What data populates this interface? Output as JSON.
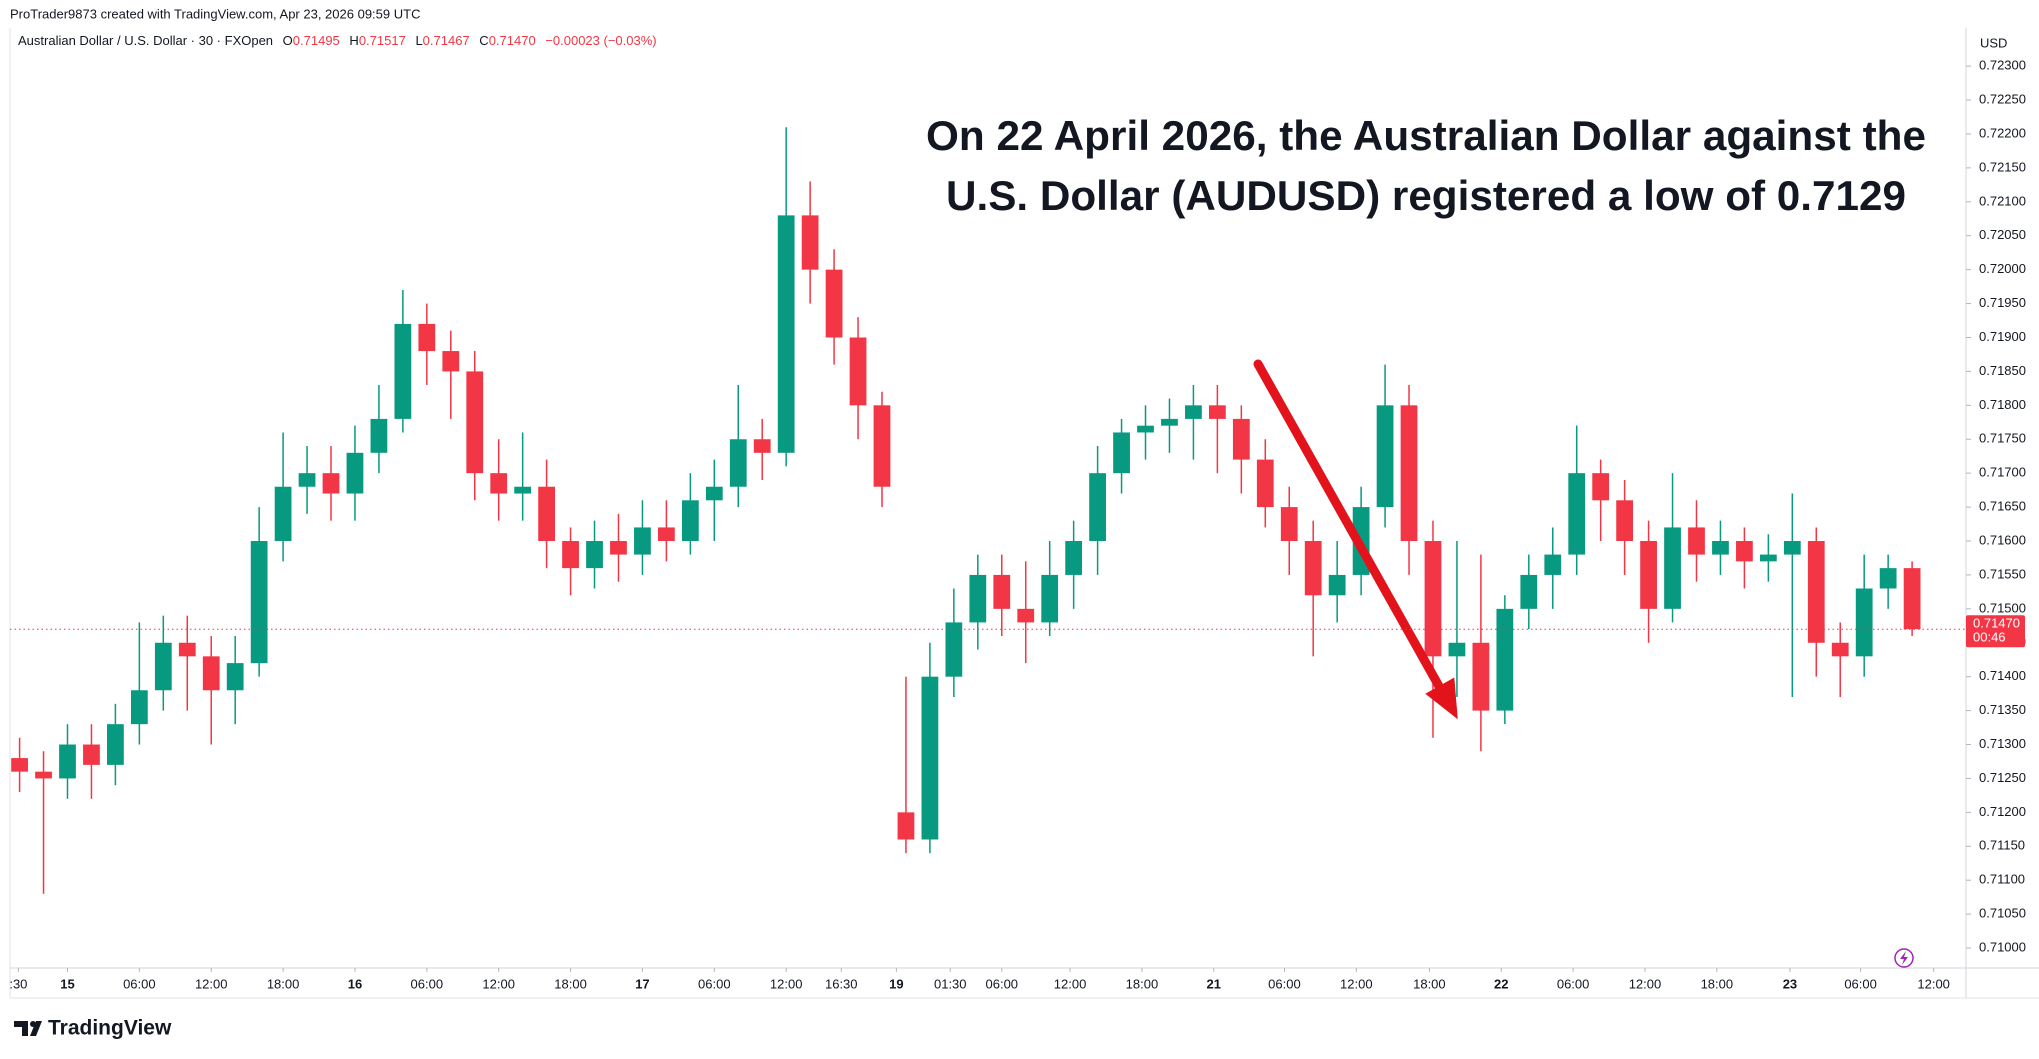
{
  "header": "ProTrader9873 created with TradingView.com, Apr 23, 2026 09:59 UTC",
  "chart_data": {
    "type": "candlestick",
    "symbol": "Australian Dollar / U.S. Dollar · 30 · FXOpen",
    "legend_values": [
      {
        "key": "O",
        "value": "0.71495"
      },
      {
        "key": "H",
        "value": "0.71517"
      },
      {
        "key": "L",
        "value": "0.71467"
      },
      {
        "key": "C",
        "value": "0.71470"
      }
    ],
    "change": "−0.00023 (−0.03%)",
    "currency": "USD",
    "annotation": [
      "On 22 April 2026, the Australian Dollar against the",
      "U.S. Dollar (AUDUSD) registered a low of 0.7129"
    ],
    "up_color": "#089981",
    "down_color": "#f23645",
    "x": [
      -4,
      -2,
      0,
      2,
      4,
      6,
      8,
      10,
      12,
      14,
      16,
      18,
      20,
      22,
      24,
      26,
      28,
      30,
      32,
      34,
      36,
      38,
      40,
      42,
      44,
      46,
      48,
      50,
      52,
      54,
      56,
      58,
      60,
      62,
      64,
      66,
      68,
      70,
      72,
      74,
      76,
      78,
      80,
      82,
      84,
      86,
      88,
      90,
      92,
      94,
      96,
      98,
      100,
      102,
      104,
      106,
      108,
      110,
      112,
      114,
      116,
      118,
      120,
      122,
      124,
      126,
      128,
      130,
      132,
      134,
      136,
      138,
      140,
      142,
      144,
      146,
      148,
      150,
      152,
      154
    ],
    "open": [
      0.7128,
      0.7126,
      0.7125,
      0.713,
      0.7127,
      0.7133,
      0.7138,
      0.7145,
      0.7143,
      0.7138,
      0.7142,
      0.716,
      0.7168,
      0.717,
      0.7167,
      0.7173,
      0.7178,
      0.7192,
      0.7188,
      0.7185,
      0.717,
      0.7167,
      0.7168,
      0.716,
      0.7156,
      0.716,
      0.7158,
      0.7162,
      0.716,
      0.7166,
      0.7168,
      0.7175,
      0.7173,
      0.7208,
      0.72,
      0.719,
      0.718,
      0.712,
      0.7116,
      0.714,
      0.7148,
      0.7155,
      0.715,
      0.7148,
      0.7155,
      0.716,
      0.717,
      0.7176,
      0.7177,
      0.7178,
      0.718,
      0.7178,
      0.7172,
      0.7165,
      0.716,
      0.7152,
      0.7155,
      0.7165,
      0.718,
      0.716,
      0.7143,
      0.7145,
      0.7135,
      0.715,
      0.7155,
      0.7158,
      0.717,
      0.7166,
      0.716,
      0.715,
      0.7162,
      0.7158,
      0.716,
      0.7157,
      0.7158,
      0.716,
      0.7145,
      0.7143,
      0.7153,
      0.7156
    ],
    "high": [
      0.7131,
      0.7129,
      0.7133,
      0.7133,
      0.7136,
      0.7148,
      0.7149,
      0.7149,
      0.7146,
      0.7146,
      0.7165,
      0.7176,
      0.7174,
      0.7174,
      0.7177,
      0.7183,
      0.7197,
      0.7195,
      0.7191,
      0.7188,
      0.7175,
      0.7176,
      0.7172,
      0.7162,
      0.7163,
      0.7164,
      0.7166,
      0.7166,
      0.717,
      0.7172,
      0.7183,
      0.7178,
      0.7221,
      0.7213,
      0.7203,
      0.7193,
      0.7182,
      0.714,
      0.7145,
      0.7153,
      0.7158,
      0.7158,
      0.7157,
      0.716,
      0.7163,
      0.7174,
      0.7178,
      0.718,
      0.7181,
      0.7183,
      0.7183,
      0.718,
      0.7175,
      0.7168,
      0.7163,
      0.716,
      0.7168,
      0.7186,
      0.7183,
      0.7163,
      0.716,
      0.7158,
      0.7152,
      0.7158,
      0.7162,
      0.7177,
      0.7172,
      0.7169,
      0.7163,
      0.717,
      0.7166,
      0.7163,
      0.7162,
      0.7161,
      0.7167,
      0.7162,
      0.7148,
      0.7158,
      0.7158,
      0.7157
    ],
    "low": [
      0.7123,
      0.7108,
      0.7122,
      0.7122,
      0.7124,
      0.713,
      0.7135,
      0.7135,
      0.713,
      0.7133,
      0.714,
      0.7157,
      0.7164,
      0.7163,
      0.7163,
      0.717,
      0.7176,
      0.7183,
      0.7178,
      0.7166,
      0.7163,
      0.7163,
      0.7156,
      0.7152,
      0.7153,
      0.7154,
      0.7155,
      0.7157,
      0.7158,
      0.716,
      0.7165,
      0.7169,
      0.7171,
      0.7195,
      0.7186,
      0.7175,
      0.7165,
      0.7114,
      0.7114,
      0.7137,
      0.7144,
      0.7146,
      0.7142,
      0.7146,
      0.715,
      0.7155,
      0.7167,
      0.7172,
      0.7173,
      0.7172,
      0.717,
      0.7167,
      0.7162,
      0.7155,
      0.7143,
      0.7148,
      0.7152,
      0.7162,
      0.7155,
      0.7131,
      0.7137,
      0.7129,
      0.7133,
      0.7147,
      0.715,
      0.7155,
      0.716,
      0.7155,
      0.7145,
      0.7148,
      0.7154,
      0.7155,
      0.7153,
      0.7154,
      0.7137,
      0.714,
      0.7137,
      0.714,
      0.715,
      0.7146
    ],
    "close": [
      0.7126,
      0.7125,
      0.713,
      0.7127,
      0.7133,
      0.7138,
      0.7145,
      0.7143,
      0.7138,
      0.7142,
      0.716,
      0.7168,
      0.717,
      0.7167,
      0.7173,
      0.7178,
      0.7192,
      0.7188,
      0.7185,
      0.717,
      0.7167,
      0.7168,
      0.716,
      0.7156,
      0.716,
      0.7158,
      0.7162,
      0.716,
      0.7166,
      0.7168,
      0.7175,
      0.7173,
      0.7208,
      0.72,
      0.719,
      0.718,
      0.7168,
      0.7116,
      0.714,
      0.7148,
      0.7155,
      0.715,
      0.7148,
      0.7155,
      0.716,
      0.717,
      0.7176,
      0.7177,
      0.7178,
      0.718,
      0.7178,
      0.7172,
      0.7165,
      0.716,
      0.7152,
      0.7155,
      0.7165,
      0.718,
      0.716,
      0.7143,
      0.7145,
      0.7135,
      0.715,
      0.7155,
      0.7158,
      0.717,
      0.7166,
      0.716,
      0.715,
      0.7162,
      0.7158,
      0.716,
      0.7157,
      0.7158,
      0.716,
      0.7145,
      0.7143,
      0.7153,
      0.7156,
      0.7147
    ],
    "xlim": [
      -4.8,
      158.5
    ],
    "xticks": [
      {
        "value": -4.1,
        "label": ":30"
      },
      {
        "value": 0,
        "label": "15"
      },
      {
        "value": 6,
        "label": "06:00"
      },
      {
        "value": 12,
        "label": "12:00"
      },
      {
        "value": 18,
        "label": "18:00"
      },
      {
        "value": 24,
        "label": "16"
      },
      {
        "value": 30,
        "label": "06:00"
      },
      {
        "value": 36,
        "label": "12:00"
      },
      {
        "value": 42,
        "label": "18:00"
      },
      {
        "value": 48,
        "label": "17"
      },
      {
        "value": 54,
        "label": "06:00"
      },
      {
        "value": 60,
        "label": "12:00"
      },
      {
        "value": 64.6,
        "label": "16:30"
      },
      {
        "value": 69.2,
        "label": "19"
      },
      {
        "value": 73.7,
        "label": "01:30"
      },
      {
        "value": 78,
        "label": "06:00"
      },
      {
        "value": 83.7,
        "label": "12:00"
      },
      {
        "value": 89.7,
        "label": "18:00"
      },
      {
        "value": 95.7,
        "label": "21"
      },
      {
        "value": 101.6,
        "label": "06:00"
      },
      {
        "value": 107.6,
        "label": "12:00"
      },
      {
        "value": 113.7,
        "label": "18:00"
      },
      {
        "value": 119.7,
        "label": "22"
      },
      {
        "value": 125.7,
        "label": "06:00"
      },
      {
        "value": 131.7,
        "label": "12:00"
      },
      {
        "value": 137.7,
        "label": "18:00"
      },
      {
        "value": 143.8,
        "label": "23"
      },
      {
        "value": 149.7,
        "label": "06:00"
      },
      {
        "value": 155.8,
        "label": "12:00"
      }
    ],
    "ylim": [
      0.70975,
      0.7234
    ],
    "yticks": [
      {
        "value": 0.71,
        "label": "0.71000"
      },
      {
        "value": 0.7105,
        "label": "0.71050"
      },
      {
        "value": 0.711,
        "label": "0.71100"
      },
      {
        "value": 0.7115,
        "label": "0.71150"
      },
      {
        "value": 0.712,
        "label": "0.71200"
      },
      {
        "value": 0.7125,
        "label": "0.71250"
      },
      {
        "value": 0.713,
        "label": "0.71300"
      },
      {
        "value": 0.7135,
        "label": "0.71350"
      },
      {
        "value": 0.714,
        "label": "0.71400"
      },
      {
        "value": 0.7145,
        "label": "0.71450"
      },
      {
        "value": 0.715,
        "label": "0.71500"
      },
      {
        "value": 0.7155,
        "label": "0.71550"
      },
      {
        "value": 0.716,
        "label": "0.71600"
      },
      {
        "value": 0.7165,
        "label": "0.71650"
      },
      {
        "value": 0.717,
        "label": "0.71700"
      },
      {
        "value": 0.7175,
        "label": "0.71750"
      },
      {
        "value": 0.718,
        "label": "0.71800"
      },
      {
        "value": 0.7185,
        "label": "0.71850"
      },
      {
        "value": 0.719,
        "label": "0.71900"
      },
      {
        "value": 0.7195,
        "label": "0.71950"
      },
      {
        "value": 0.72,
        "label": "0.72000"
      },
      {
        "value": 0.7205,
        "label": "0.72050"
      },
      {
        "value": 0.721,
        "label": "0.72100"
      },
      {
        "value": 0.7215,
        "label": "0.72150"
      },
      {
        "value": 0.722,
        "label": "0.72200"
      },
      {
        "value": 0.7225,
        "label": "0.72250"
      },
      {
        "value": 0.723,
        "label": "0.72300"
      }
    ],
    "grid": false,
    "last_price": {
      "value": 0.7147,
      "label": "0.71470",
      "countdown": "00:46"
    }
  },
  "footer": {
    "brand": "TradingView"
  }
}
